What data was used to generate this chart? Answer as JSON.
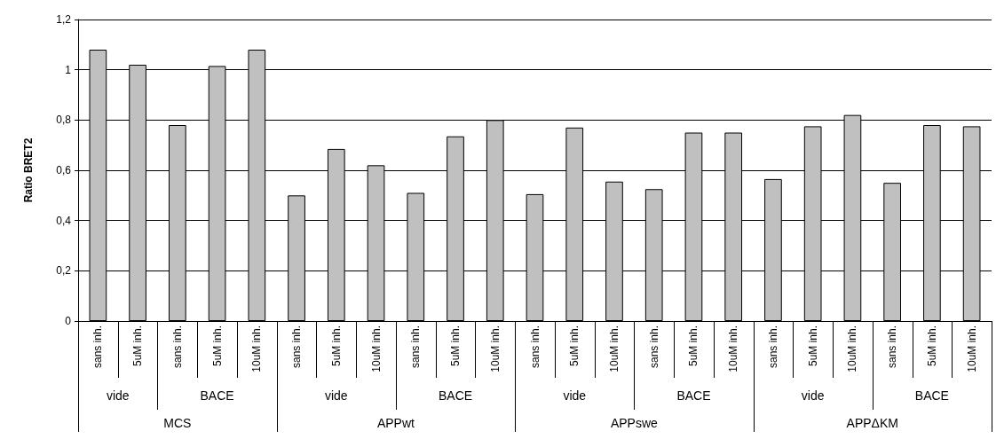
{
  "chart_data": {
    "type": "bar",
    "ylabel": "Ratio BRET2",
    "categories": [
      "sans inh.",
      "5uM inh.",
      "sans inh.",
      "5uM inh.",
      "10uM inh.",
      "sans inh.",
      "5uM inh.",
      "10uM inh.",
      "sans inh.",
      "5uM inh.",
      "10uM inh.",
      "sans inh.",
      "5uM inh.",
      "10uM inh.",
      "sans inh.",
      "5uM inh.",
      "10uM inh.",
      "sans inh.",
      "5uM inh.",
      "10uM inh.",
      "sans inh.",
      "5uM inh.",
      "10uM inh."
    ],
    "annotations": [
      "vide",
      "BACE",
      "vide",
      "BACE",
      "vide",
      "BACE",
      "vide",
      "BACE",
      "MCS",
      "APPwt",
      "APPswe",
      "APPΔKM"
    ],
    "values": [
      1.08,
      1.02,
      0.78,
      1.015,
      1.08,
      0.5,
      0.685,
      0.62,
      0.51,
      0.735,
      0.8,
      0.505,
      0.77,
      0.555,
      0.525,
      0.75,
      0.75,
      0.565,
      0.775,
      0.82,
      0.55,
      0.78,
      0.775
    ],
    "color": "#c0c0c0",
    "ylim": [
      0,
      1.2
    ],
    "yticks": [
      0,
      {
        "value": 0.2,
        "label": "0,2"
      },
      {
        "value": 0.4,
        "label": "0,4"
      },
      {
        "value": 0.6,
        "label": "0,6"
      },
      {
        "value": 0.8,
        "label": "0,8"
      },
      1,
      {
        "value": 1.2,
        "label": "1,2"
      }
    ],
    "grid": "y"
  }
}
